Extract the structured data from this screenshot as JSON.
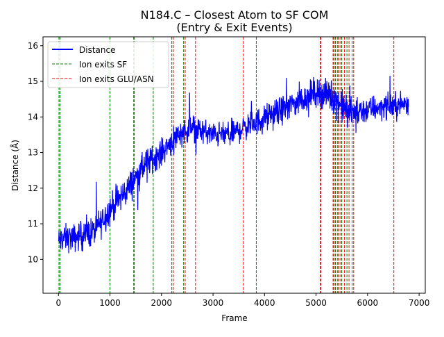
{
  "chart_data": {
    "type": "line",
    "title_line1": "N184.C – Closest Atom to SF COM",
    "title_line2": "(Entry & Exit Events)",
    "xlabel": "Frame",
    "ylabel": "Distance (Å)",
    "xlim": [
      -300,
      7120
    ],
    "ylim": [
      9.05,
      16.25
    ],
    "xticks": [
      0,
      1000,
      2000,
      3000,
      4000,
      5000,
      6000,
      7000
    ],
    "xtick_labels": [
      "0",
      "1000",
      "2000",
      "3000",
      "4000",
      "5000",
      "6000",
      "7000"
    ],
    "yticks": [
      10,
      11,
      12,
      13,
      14,
      15,
      16
    ],
    "ytick_labels": [
      "10",
      "11",
      "12",
      "13",
      "14",
      "15",
      "16"
    ],
    "grid": false,
    "legend_position": "upper-left",
    "legend": [
      {
        "label": "Distance",
        "color": "#0000ff",
        "style": "solid"
      },
      {
        "label": "Ion exits SF",
        "color": "#008000",
        "style": "dashed"
      },
      {
        "label": "Ion exits GLU/ASN",
        "color": "#ff0000",
        "style": "dashed"
      }
    ],
    "series": [
      {
        "name": "Distance",
        "color": "#0000ff",
        "x_range": [
          0,
          6800
        ],
        "trend_points": [
          [
            0,
            10.5
          ],
          [
            100,
            10.6
          ],
          [
            300,
            10.6
          ],
          [
            500,
            10.7
          ],
          [
            700,
            10.8
          ],
          [
            1000,
            11.4
          ],
          [
            1300,
            11.9
          ],
          [
            1500,
            12.3
          ],
          [
            1700,
            12.7
          ],
          [
            2000,
            13.0
          ],
          [
            2300,
            13.5
          ],
          [
            2600,
            13.7
          ],
          [
            3000,
            13.5
          ],
          [
            3300,
            13.5
          ],
          [
            3600,
            13.7
          ],
          [
            3900,
            13.9
          ],
          [
            4200,
            14.1
          ],
          [
            4600,
            14.4
          ],
          [
            5000,
            14.7
          ],
          [
            5300,
            14.6
          ],
          [
            5500,
            14.3
          ],
          [
            5700,
            14.1
          ],
          [
            6000,
            14.2
          ],
          [
            6300,
            14.3
          ],
          [
            6500,
            14.3
          ],
          [
            6800,
            14.4
          ]
        ],
        "noise_amplitude": [
          [
            0,
            0.55
          ],
          [
            500,
            0.6
          ],
          [
            1000,
            0.65
          ],
          [
            1500,
            0.6
          ],
          [
            2000,
            0.55
          ],
          [
            3000,
            0.5
          ],
          [
            4000,
            0.55
          ],
          [
            5000,
            0.6
          ],
          [
            5500,
            0.7
          ],
          [
            6000,
            0.55
          ],
          [
            6800,
            0.5
          ]
        ]
      }
    ],
    "vlines_sf": [
      10,
      30,
      1000,
      1460,
      1840,
      2200,
      2430,
      3840,
      5080,
      5330,
      5370,
      5420,
      5500,
      5600,
      5700
    ],
    "vlines_glu_asn": [
      1470,
      2230,
      2460,
      2660,
      3590,
      5090,
      5340,
      5380,
      5440,
      5480,
      5550,
      5640,
      5730,
      6510
    ],
    "colors": {
      "distance": "#0000ff",
      "sf": "#008000",
      "glu_asn": "#ff0000"
    }
  }
}
